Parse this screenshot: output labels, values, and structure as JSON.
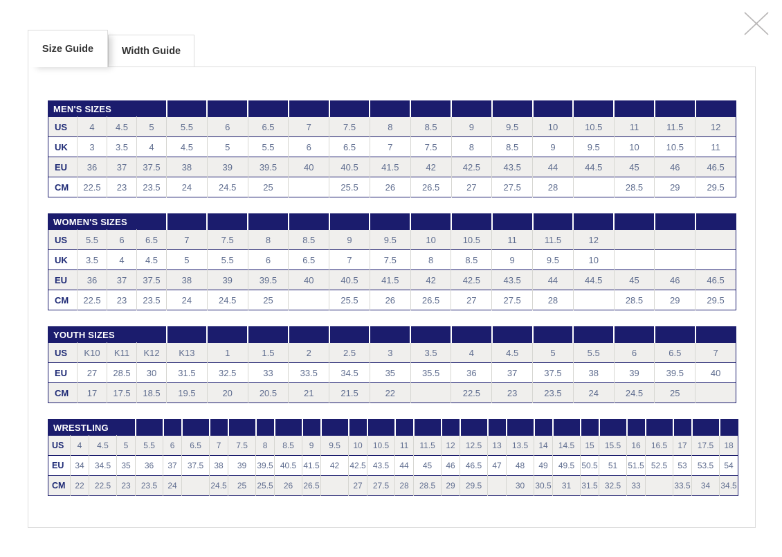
{
  "window": {
    "close_icon": "close"
  },
  "tabs": [
    {
      "label": "Size Guide",
      "active": true
    },
    {
      "label": "Width Guide",
      "active": false
    }
  ],
  "colors": {
    "navy": "#1b1c6d",
    "row_alt_bg": "#f0efed",
    "value_text": "#5f6d8f",
    "label_text": "#1e2a75",
    "cell_divider": "#d6d6d2",
    "panel_border": "#dcdcdc",
    "tab_text": "#333333",
    "close_gray": "#b8b6b6"
  },
  "tables": [
    {
      "title": "MEN'S SIZES",
      "compact": false,
      "rows": [
        {
          "label": "US",
          "values": [
            "4",
            "4.5",
            "5",
            "5.5",
            "6",
            "6.5",
            "7",
            "7.5",
            "8",
            "8.5",
            "9",
            "9.5",
            "10",
            "10.5",
            "11",
            "11.5",
            "12"
          ]
        },
        {
          "label": "UK",
          "values": [
            "3",
            "3.5",
            "4",
            "4.5",
            "5",
            "5.5",
            "6",
            "6.5",
            "7",
            "7.5",
            "8",
            "8.5",
            "9",
            "9.5",
            "10",
            "10.5",
            "11"
          ]
        },
        {
          "label": "EU",
          "values": [
            "36",
            "37",
            "37.5",
            "38",
            "39",
            "39.5",
            "40",
            "40.5",
            "41.5",
            "42",
            "42.5",
            "43.5",
            "44",
            "44.5",
            "45",
            "46",
            "46.5"
          ]
        },
        {
          "label": "CM",
          "values": [
            "22.5",
            "23",
            "23.5",
            "24",
            "24.5",
            "25",
            "",
            "25.5",
            "26",
            "26.5",
            "27",
            "27.5",
            "28",
            "",
            "28.5",
            "29",
            "29.5"
          ]
        }
      ]
    },
    {
      "title": "WOMEN'S SIZES",
      "compact": false,
      "rows": [
        {
          "label": "US",
          "values": [
            "5.5",
            "6",
            "6.5",
            "7",
            "7.5",
            "8",
            "8.5",
            "9",
            "9.5",
            "10",
            "10.5",
            "11",
            "11.5",
            "12",
            "",
            "",
            ""
          ]
        },
        {
          "label": "UK",
          "values": [
            "3.5",
            "4",
            "4.5",
            "5",
            "5.5",
            "6",
            "6.5",
            "7",
            "7.5",
            "8",
            "8.5",
            "9",
            "9.5",
            "10",
            "",
            "",
            ""
          ]
        },
        {
          "label": "EU",
          "values": [
            "36",
            "37",
            "37.5",
            "38",
            "39",
            "39.5",
            "40",
            "40.5",
            "41.5",
            "42",
            "42.5",
            "43.5",
            "44",
            "44.5",
            "45",
            "46",
            "46.5"
          ]
        },
        {
          "label": "CM",
          "values": [
            "22.5",
            "23",
            "23.5",
            "24",
            "24.5",
            "25",
            "",
            "25.5",
            "26",
            "26.5",
            "27",
            "27.5",
            "28",
            "",
            "28.5",
            "29",
            "29.5"
          ]
        }
      ]
    },
    {
      "title": "YOUTH SIZES",
      "compact": false,
      "rows": [
        {
          "label": "US",
          "values": [
            "K10",
            "K11",
            "K12",
            "K13",
            "1",
            "1.5",
            "2",
            "2.5",
            "3",
            "3.5",
            "4",
            "4.5",
            "5",
            "5.5",
            "6",
            "6.5",
            "7"
          ]
        },
        {
          "label": "EU",
          "values": [
            "27",
            "28.5",
            "30",
            "31.5",
            "32.5",
            "33",
            "33.5",
            "34.5",
            "35",
            "35.5",
            "36",
            "37",
            "37.5",
            "38",
            "39",
            "39.5",
            "40"
          ]
        },
        {
          "label": "CM",
          "values": [
            "17",
            "17.5",
            "18.5",
            "19.5",
            "20",
            "20.5",
            "21",
            "21.5",
            "22",
            "",
            "22.5",
            "23",
            "23.5",
            "24",
            "24.5",
            "25",
            ""
          ]
        }
      ]
    },
    {
      "title": "WRESTLING",
      "compact": true,
      "rows": [
        {
          "label": "US",
          "values": [
            "4",
            "4.5",
            "5",
            "5.5",
            "6",
            "6.5",
            "7",
            "7.5",
            "8",
            "8.5",
            "9",
            "9.5",
            "10",
            "10.5",
            "11",
            "11.5",
            "12",
            "12.5",
            "13",
            "13.5",
            "14",
            "14.5",
            "15",
            "15.5",
            "16",
            "16.5",
            "17",
            "17.5",
            "18"
          ]
        },
        {
          "label": "EU",
          "values": [
            "34",
            "34.5",
            "35",
            "36",
            "37",
            "37.5",
            "38",
            "39",
            "39.5",
            "40.5",
            "41.5",
            "42",
            "42.5",
            "43.5",
            "44",
            "45",
            "46",
            "46.5",
            "47",
            "48",
            "49",
            "49.5",
            "50.5",
            "51",
            "51.5",
            "52.5",
            "53",
            "53.5",
            "54"
          ]
        },
        {
          "label": "CM",
          "values": [
            "22",
            "22.5",
            "23",
            "23.5",
            "24",
            "",
            "24.5",
            "25",
            "25.5",
            "26",
            "26.5",
            "",
            "27",
            "27.5",
            "28",
            "28.5",
            "29",
            "29.5",
            "",
            "30",
            "30.5",
            "31",
            "31.5",
            "32.5",
            "33",
            "",
            "33.5",
            "34",
            "34.5"
          ]
        }
      ]
    }
  ]
}
